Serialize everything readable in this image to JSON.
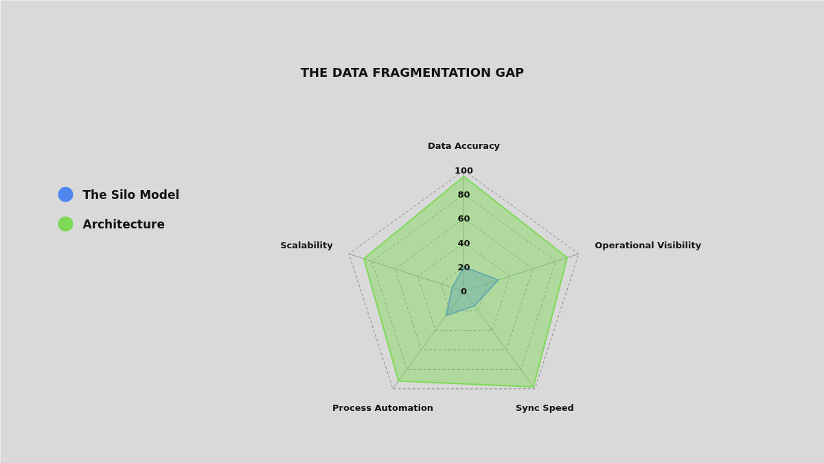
{
  "chart_data": {
    "type": "radar",
    "title": "THE DATA FRAGMENTATION GAP",
    "categories": [
      "Data Accuracy",
      "Operational Visibility",
      "Sync Speed",
      "Process Automation",
      "Scalability"
    ],
    "series": [
      {
        "name": "The Silo Model",
        "color": "#4f86f0",
        "values": [
          20,
          30,
          15,
          25,
          10
        ]
      },
      {
        "name": "Architecture",
        "color": "#7ed957",
        "values": [
          95,
          90,
          98,
          92,
          87
        ]
      }
    ],
    "ylim": [
      0,
      100
    ],
    "yticks": [
      0,
      20,
      40,
      60,
      80,
      100
    ],
    "grid": true,
    "legend": "left"
  }
}
